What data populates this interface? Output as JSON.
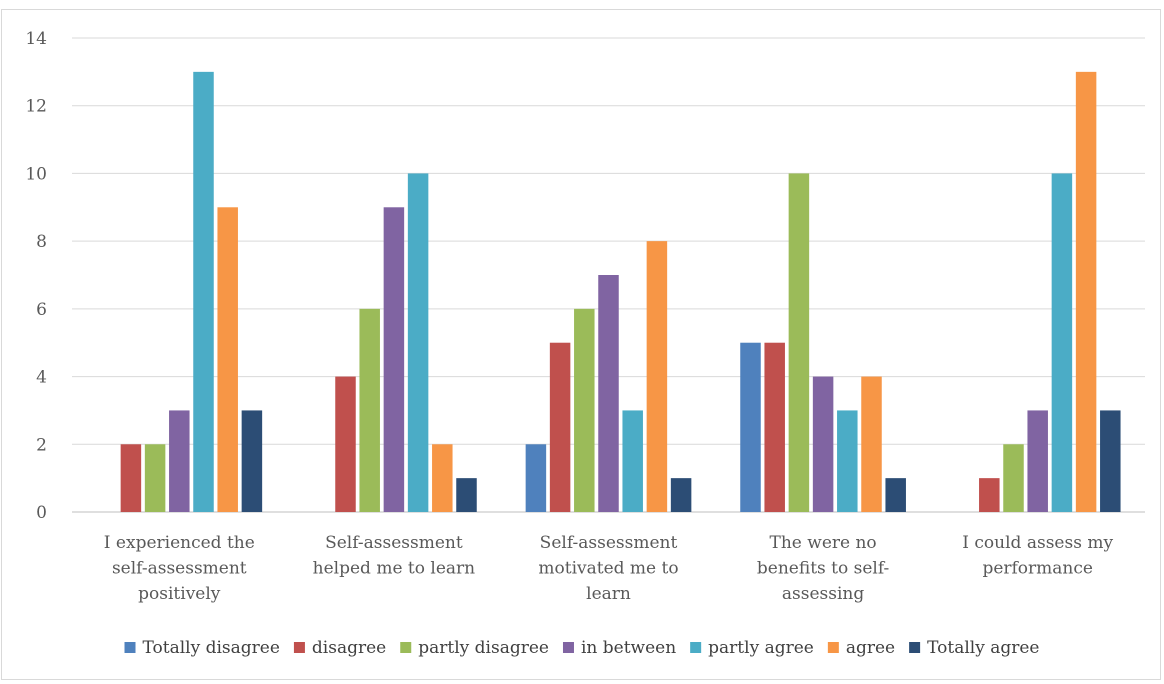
{
  "chart_data": {
    "type": "bar",
    "title": "",
    "xlabel": "",
    "ylabel": "",
    "ylim": [
      0,
      14
    ],
    "yticks": [
      0,
      2,
      4,
      6,
      8,
      10,
      12,
      14
    ],
    "grid": true,
    "legend_position": "bottom",
    "categories": [
      [
        "I experienced the",
        "self-assessment",
        "positively"
      ],
      [
        "Self-assessment",
        "helped me to learn"
      ],
      [
        "Self-assessment",
        "motivated me to",
        "learn"
      ],
      [
        "The were no",
        "benefits to self-",
        "assessing"
      ],
      [
        "I could assess my",
        "performance"
      ]
    ],
    "series": [
      {
        "name": "Totally disagree",
        "color": "#4f81bd",
        "values": [
          0,
          0,
          2,
          5,
          0
        ]
      },
      {
        "name": "disagree",
        "color": "#c0504d",
        "values": [
          2,
          4,
          5,
          5,
          1
        ]
      },
      {
        "name": "partly disagree",
        "color": "#9bbb59",
        "values": [
          2,
          6,
          6,
          10,
          2
        ]
      },
      {
        "name": "in between",
        "color": "#8064a2",
        "values": [
          3,
          9,
          7,
          4,
          3
        ]
      },
      {
        "name": "partly agree",
        "color": "#4bacc6",
        "values": [
          13,
          10,
          3,
          3,
          10
        ]
      },
      {
        "name": "agree",
        "color": "#f79646",
        "values": [
          9,
          2,
          8,
          4,
          13
        ]
      },
      {
        "name": "Totally agree",
        "color": "#2c4d75",
        "values": [
          3,
          1,
          1,
          1,
          3
        ]
      }
    ]
  },
  "colors": {
    "grid": "#d9d9d9",
    "axis_text": "#595959"
  }
}
